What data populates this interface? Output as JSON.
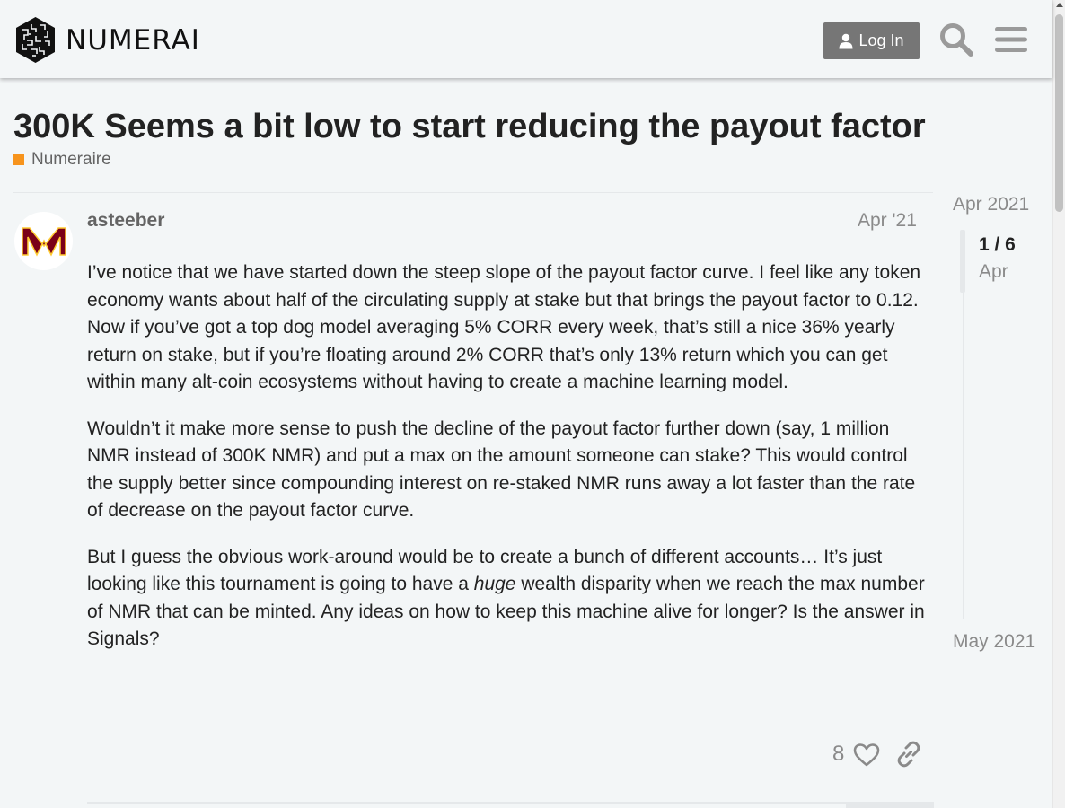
{
  "header": {
    "brand": "NUMERAI",
    "login_label": "Log In",
    "icons": [
      "user-icon",
      "search-icon",
      "hamburger-menu-icon"
    ]
  },
  "topic": {
    "title": "300K Seems a bit low to start reducing the payout factor",
    "category": "Numeraire",
    "category_color": "#f7941d"
  },
  "post": {
    "username": "asteeber",
    "date": "Apr '21",
    "avatar_letter": "M",
    "avatar_color": "#7a0019",
    "paragraphs": [
      "I’ve notice that we have started down the steep slope of the payout factor curve. I feel like any token economy wants about half of the circulating supply at stake but that brings the payout factor to 0.12. Now if you’ve got a top dog model averaging 5% CORR every week, that’s still a nice 36% yearly return on stake, but if you’re floating around 2% CORR that’s only 13% return which you can get within many alt-coin ecosystems without having to create a machine learning model.",
      "Wouldn’t it make more sense to push the decline of the payout factor further down (say, 1 million NMR instead of 300K NMR) and put a max on the amount someone can stake? This would control the supply better since compounding interest on re-staked NMR runs away a lot faster than the rate of decrease on the payout factor curve."
    ],
    "p3_before": "But I guess the obvious work-around would be to create a bunch of different accounts… It’s just looking like this tournament is going to have a ",
    "p3_emph": "huge",
    "p3_after": " wealth disparity when we reach the max number of NMR that can be minted. Any ideas on how to keep this machine alive for longer? Is the answer in Signals?",
    "like_count": "8"
  },
  "timeline": {
    "start_date": "Apr 2021",
    "position": "1 / 6",
    "current_date": "Apr",
    "end_date": "May 2021"
  },
  "colors": {
    "background": "#f3f6f7",
    "primary_text": "#222222",
    "muted_text": "#8a8a8a",
    "login_button": "#767676"
  }
}
